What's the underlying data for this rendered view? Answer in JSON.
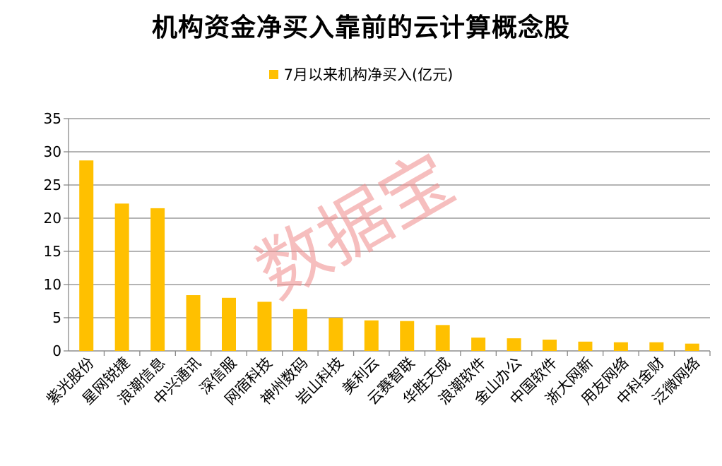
{
  "title": "机构资金净买入靠前的云计算概念股",
  "legend": {
    "label": "7月以来机构净买入(亿元)"
  },
  "watermark": "数据宝",
  "colors": {
    "bar": "#FFC000",
    "grid": "#888888"
  },
  "chart_data": {
    "type": "bar",
    "categories": [
      "紫光股份",
      "星网锐捷",
      "浪潮信息",
      "中兴通讯",
      "深信服",
      "网宿科技",
      "神州数码",
      "岩山科技",
      "美利云",
      "云赛智联",
      "华胜天成",
      "浪潮软件",
      "金山办公",
      "中国软件",
      "浙大网新",
      "用友网络",
      "中科金财",
      "泛微网络"
    ],
    "series": [
      {
        "name": "7月以来机构净买入(亿元)",
        "values": [
          28.7,
          22.2,
          21.5,
          8.4,
          8.0,
          7.4,
          6.3,
          5.0,
          4.6,
          4.5,
          3.9,
          2.0,
          1.9,
          1.7,
          1.4,
          1.3,
          1.3,
          1.1
        ]
      }
    ],
    "ylim": [
      0,
      35
    ],
    "yticks": [
      "0",
      "5",
      "10",
      "15",
      "20",
      "25",
      "30",
      "35"
    ],
    "grid": true,
    "legend_position": "top"
  }
}
